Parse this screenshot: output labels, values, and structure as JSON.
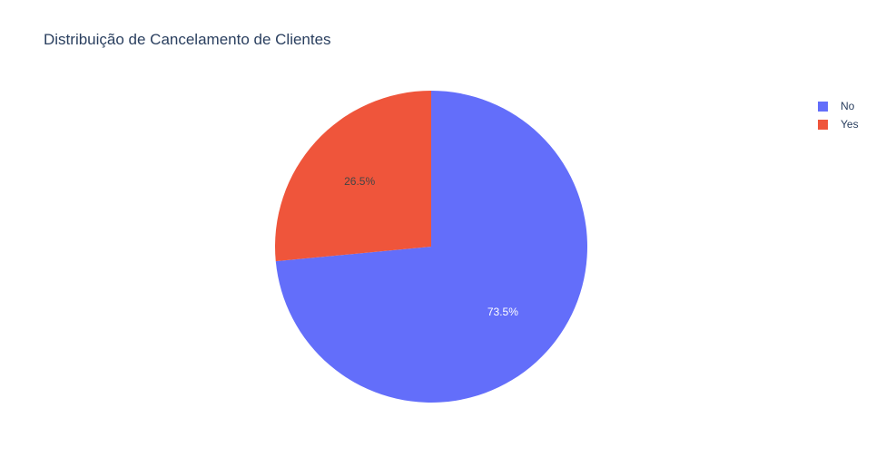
{
  "title": "Distribuição de Cancelamento de Clientes",
  "colors": {
    "No": "#636efa",
    "Yes": "#ef553b",
    "title_text": "#2a3f5f",
    "label_on_No": "#ffffff",
    "label_on_Yes": "#444444"
  },
  "legend": {
    "position": "top-right",
    "items": [
      {
        "label": "No",
        "color": "#636efa"
      },
      {
        "label": "Yes",
        "color": "#ef553b"
      }
    ]
  },
  "chart_data": {
    "type": "pie",
    "title": "Distribuição de Cancelamento de Clientes",
    "labels": [
      "No",
      "Yes"
    ],
    "values": [
      73.5,
      26.5
    ],
    "value_labels": [
      "73.5%",
      "26.5%"
    ],
    "colors": [
      "#636efa",
      "#ef553b"
    ],
    "direction": "clockwise",
    "start": "12 o'clock",
    "legend": "top-right"
  }
}
